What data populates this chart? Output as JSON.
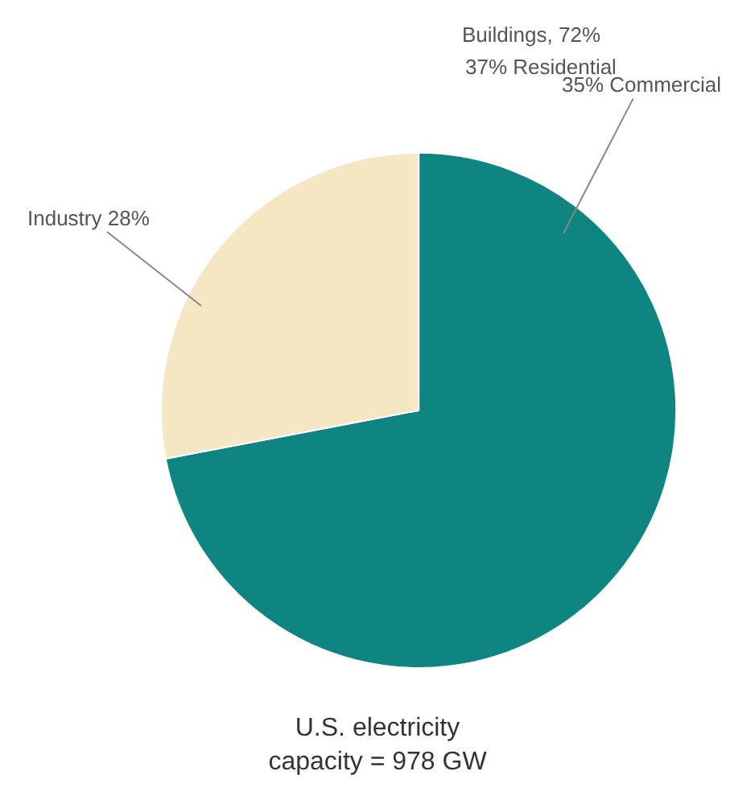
{
  "chart_data": {
    "type": "pie",
    "title": "U.S. electricity capacity = 978 GW",
    "categories": [
      "Buildings, 72%",
      "Industry 28%"
    ],
    "values": [
      72,
      28
    ],
    "colors": [
      "#0e8580",
      "#f5e6c4"
    ],
    "annotations": [
      "37% Residential",
      "35% Commercial"
    ],
    "legend": false
  }
}
